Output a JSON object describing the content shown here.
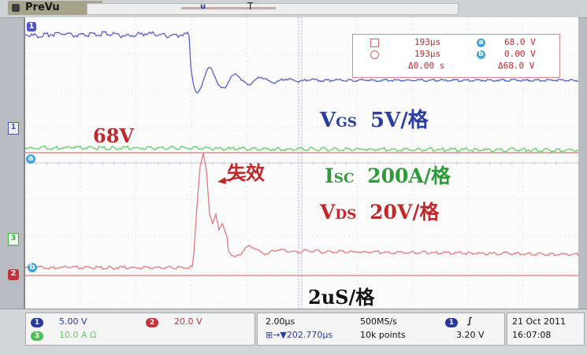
{
  "topbar": {
    "mode_label": "PreVu",
    "time_marker": "u",
    "trigger_marker": "T"
  },
  "readout": {
    "cursor_a_time": "193μs",
    "cursor_b_time": "193μs",
    "delta_time": "Δ0.00 s",
    "cursor_a_channel": "a",
    "cursor_b_channel": "b",
    "cursor_a_value": "68.0 V",
    "cursor_b_value": "0.00 V",
    "delta_value": "Δ68.0 V"
  },
  "annotations": {
    "vgs_main": "V",
    "vgs_sub": "GS",
    "vgs_scale": "5V/格",
    "isc_main": "I",
    "isc_sub": "SC",
    "isc_scale": "200A/格",
    "vds_main": "V",
    "vds_sub": "DS",
    "vds_scale": "20V/格",
    "voltage_68": "68V",
    "failure": "失效",
    "time_scale": "2uS/格"
  },
  "left_markers": {
    "ch1": "1",
    "cursor_a": "a",
    "ch3": "3",
    "cursor_b": "b",
    "ch2": "2",
    "top": "1"
  },
  "status": {
    "ch1_num": "1",
    "ch1_scale": "5.00 V",
    "ch2_num": "2",
    "ch2_scale": "20.0 V",
    "ch3_num": "3",
    "ch3_scale": "10.0 A Ω",
    "timebase": "2.00μs",
    "trigger_pos": "⊞→▼202.770μs",
    "sample_rate": "500MS/s",
    "record_length": "10k points",
    "trig_source": "1",
    "trig_slope": "∫",
    "trig_level": "3.20 V",
    "date": "21 Oct 2011",
    "time": "16:07:08"
  },
  "colors": {
    "ch1": "#5b5fc8",
    "ch2": "#e07a80",
    "ch3": "#5fcf62",
    "isc_label": "#2f9a3a",
    "vds_label": "#c0282b",
    "vgs_label": "#2a3fa0"
  }
}
